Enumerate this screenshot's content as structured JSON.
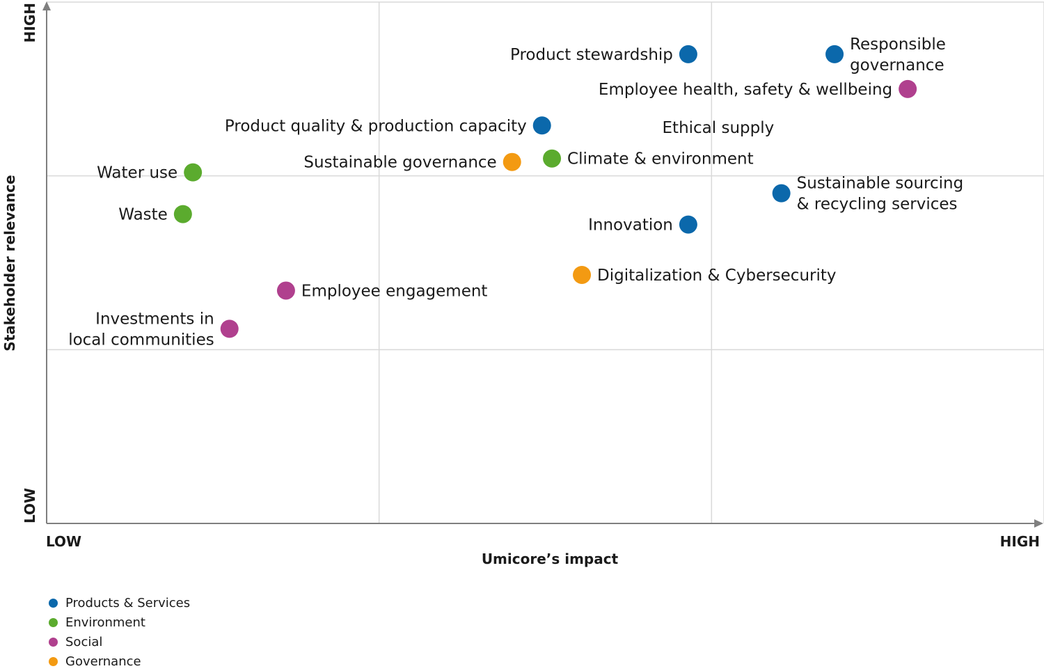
{
  "chart_data": {
    "type": "scatter",
    "title": "",
    "xlabel": "Umicore’s impact",
    "ylabel": "Stakeholder relevance",
    "x_ticks": {
      "low": "LOW",
      "high": "HIGH"
    },
    "y_ticks": {
      "low": "LOW",
      "high": "HIGH"
    },
    "xlim": [
      0,
      3
    ],
    "ylim": [
      0,
      3
    ],
    "grid": true,
    "legend_position": "bottom-left",
    "categories": [
      {
        "name": "Products & Services",
        "color": "#0b68ab"
      },
      {
        "name": "Environment",
        "color": "#5bab2e"
      },
      {
        "name": "Social",
        "color": "#b0408e"
      },
      {
        "name": "Governance",
        "color": "#f39a12"
      }
    ],
    "points": [
      {
        "label": [
          "Product stewardship"
        ],
        "category": "Products & Services",
        "x": 1.93,
        "y": 2.7,
        "label_side": "left"
      },
      {
        "label": [
          "Responsible",
          "governance"
        ],
        "category": "Products & Services",
        "x": 2.37,
        "y": 2.7,
        "label_side": "right"
      },
      {
        "label": [
          "Employee health, safety & wellbeing"
        ],
        "category": "Social",
        "x": 2.59,
        "y": 2.5,
        "label_side": "left"
      },
      {
        "label": [
          "Product quality & production capacity"
        ],
        "category": "Products & Services",
        "x": 1.49,
        "y": 2.29,
        "label_side": "left"
      },
      {
        "label": [
          "Sustainable governance"
        ],
        "category": "Governance",
        "x": 1.4,
        "y": 2.08,
        "label_side": "left"
      },
      {
        "label": [
          "Climate & environment"
        ],
        "category": "Environment",
        "x": 1.52,
        "y": 2.1,
        "label_side": "right"
      },
      {
        "label": [
          "Water use"
        ],
        "category": "Environment",
        "x": 0.44,
        "y": 2.02,
        "label_side": "left"
      },
      {
        "label": [
          "Waste"
        ],
        "category": "Environment",
        "x": 0.41,
        "y": 1.78,
        "label_side": "left"
      },
      {
        "label": [
          "Sustainable sourcing",
          "& recycling services"
        ],
        "category": "Products & Services",
        "x": 2.21,
        "y": 1.9,
        "label_side": "right"
      },
      {
        "label": [
          "Innovation"
        ],
        "category": "Products & Services",
        "x": 1.93,
        "y": 1.72,
        "label_side": "left"
      },
      {
        "label": [
          "Digitalization & Cybersecurity"
        ],
        "category": "Governance",
        "x": 1.61,
        "y": 1.43,
        "label_side": "right"
      },
      {
        "label": [
          "Employee engagement"
        ],
        "category": "Social",
        "x": 0.72,
        "y": 1.34,
        "label_side": "right"
      },
      {
        "label": [
          "Investments in",
          "local communities"
        ],
        "category": "Social",
        "x": 0.55,
        "y": 1.12,
        "label_side": "left"
      }
    ],
    "annotations": [
      {
        "text": "Ethical supply",
        "x": 2.02,
        "y": 2.28
      }
    ]
  }
}
